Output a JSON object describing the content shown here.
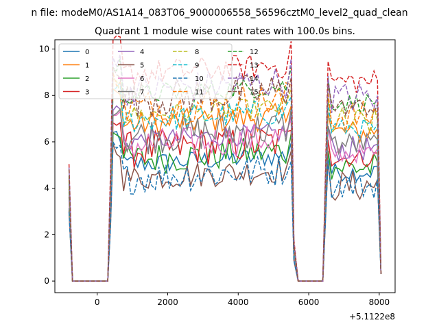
{
  "chart_data": {
    "type": "line",
    "suptitle": "n file: modeM0/AS1A14_083T06_9000006558_56596cztM0_level2_quad_clean",
    "title": "Quadrant 1 module wise count rates with 100.0s bins.",
    "xlabel": "",
    "ylabel": "",
    "x_offset_label": "+5.1122e8",
    "xlim": [
      -1200,
      8450
    ],
    "ylim": [
      -0.5,
      10.4
    ],
    "xticks": [
      0,
      2000,
      4000,
      6000,
      8000
    ],
    "xtick_labels": [
      "0",
      "2000",
      "4000",
      "6000",
      "8000"
    ],
    "yticks": [
      0,
      2,
      4,
      6,
      8,
      10
    ],
    "ytick_labels": [
      "0",
      "2",
      "4",
      "6",
      "8",
      "10"
    ],
    "grid": false,
    "legend_position": "top-left",
    "legend_columns": 4,
    "active_segments": [
      [
        -800,
        -800
      ],
      [
        350,
        5500
      ],
      [
        6550,
        8000
      ]
    ],
    "gap_segments": [
      [
        -700,
        300
      ],
      [
        5700,
        6400
      ]
    ],
    "series": [
      {
        "name": "0",
        "color": "#1f77b4",
        "dash": "solid",
        "level": 5.0
      },
      {
        "name": "1",
        "color": "#ff7f0e",
        "dash": "solid",
        "level": 6.7
      },
      {
        "name": "2",
        "color": "#2ca02c",
        "dash": "solid",
        "level": 5.2
      },
      {
        "name": "3",
        "color": "#d62728",
        "dash": "solid",
        "level": 5.6
      },
      {
        "name": "4",
        "color": "#9467bd",
        "dash": "solid",
        "level": 6.0
      },
      {
        "name": "5",
        "color": "#8c564b",
        "dash": "solid",
        "level": 4.4
      },
      {
        "name": "6",
        "color": "#e377c2",
        "dash": "solid",
        "level": 5.8
      },
      {
        "name": "7",
        "color": "#7f7f7f",
        "dash": "solid",
        "level": 6.2
      },
      {
        "name": "8",
        "color": "#bcbd22",
        "dash": "dashed",
        "level": 7.1
      },
      {
        "name": "9",
        "color": "#17becf",
        "dash": "dashed",
        "level": 6.9
      },
      {
        "name": "10",
        "color": "#1f77b4",
        "dash": "dashed",
        "level": 4.4
      },
      {
        "name": "11",
        "color": "#ff7f0e",
        "dash": "dashed",
        "level": 7.4
      },
      {
        "name": "12",
        "color": "#2ca02c",
        "dash": "dashed",
        "level": 8.0
      },
      {
        "name": "13",
        "color": "#d62728",
        "dash": "dashed",
        "level": 8.9
      },
      {
        "name": "14",
        "color": "#9467bd",
        "dash": "dashed",
        "level": 8.2
      },
      {
        "name": "15",
        "color": "#8c564b",
        "dash": "dashed",
        "level": 7.8
      }
    ]
  }
}
